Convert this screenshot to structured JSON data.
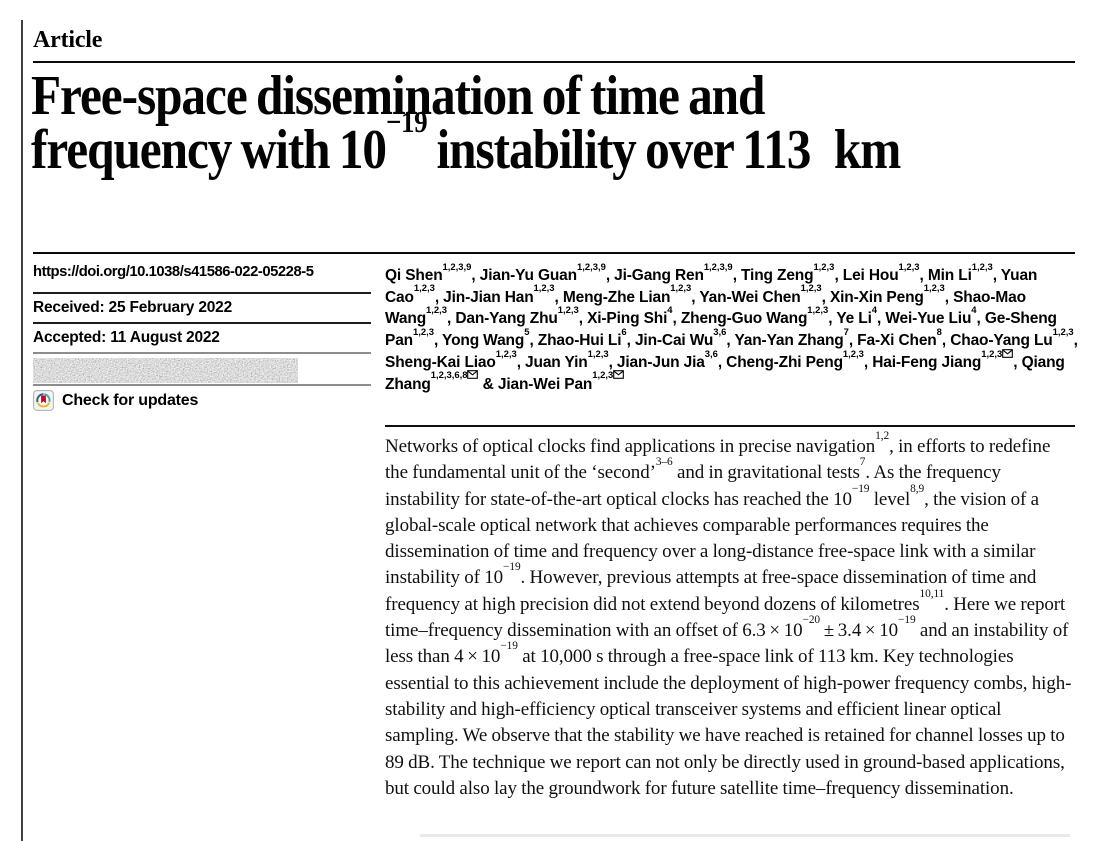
{
  "header": {
    "kicker": "Article"
  },
  "title_segments": [
    {
      "text": "Free-space dissemination of time and\nfrequency with 10"
    },
    {
      "sup": "−19"
    },
    {
      "text": " instability over 113 km"
    }
  ],
  "metadata": {
    "doi": "https://doi.org/10.1038/s41586-022-05228-5",
    "received": "Received: 25 February 2022",
    "accepted": "Accepted: 11 August 2022",
    "published_row_redacted": true,
    "check_updates": "Check for updates"
  },
  "authors": [
    {
      "name": "Qi Shen",
      "sup": "1,2,3,9",
      "sep": ", "
    },
    {
      "name": "Jian-Yu Guan",
      "sup": "1,2,3,9",
      "sep": ", "
    },
    {
      "name": "Ji-Gang Ren",
      "sup": "1,2,3,9",
      "sep": ", "
    },
    {
      "name": "Ting Zeng",
      "sup": "1,2,3",
      "sep": ", "
    },
    {
      "name": "Lei Hou",
      "sup": "1,2,3",
      "sep": ", "
    },
    {
      "name": "Min Li",
      "sup": "1,2,3",
      "sep": ", "
    },
    {
      "name": "Yuan Cao",
      "sup": "1,2,3",
      "sep": ", "
    },
    {
      "name": "Jin-Jian Han",
      "sup": "1,2,3",
      "sep": ", "
    },
    {
      "name": "Meng-Zhe Lian",
      "sup": "1,2,3",
      "sep": ", "
    },
    {
      "name": "Yan-Wei Chen",
      "sup": "1,2,3",
      "sep": ", "
    },
    {
      "name": "Xin-Xin Peng",
      "sup": "1,2,3",
      "sep": ", "
    },
    {
      "name": "Shao-Mao Wang",
      "sup": "1,2,3",
      "sep": ", "
    },
    {
      "name": "Dan-Yang Zhu",
      "sup": "1,2,3",
      "sep": ", "
    },
    {
      "name": "Xi-Ping Shi",
      "sup": "4",
      "sep": ", "
    },
    {
      "name": "Zheng-Guo Wang",
      "sup": "1,2,3",
      "sep": ", "
    },
    {
      "name": "Ye Li",
      "sup": "4",
      "sep": ", "
    },
    {
      "name": "Wei-Yue Liu",
      "sup": "4",
      "sep": ", "
    },
    {
      "name": "Ge-Sheng Pan",
      "sup": "1,2,3",
      "sep": ", "
    },
    {
      "name": "Yong Wang",
      "sup": "5",
      "sep": ", "
    },
    {
      "name": "Zhao-Hui Li",
      "sup": "6",
      "sep": ", "
    },
    {
      "name": "Jin-Cai Wu",
      "sup": "3,6",
      "sep": ", "
    },
    {
      "name": "Yan-Yan Zhang",
      "sup": "7",
      "sep": ", "
    },
    {
      "name": "Fa-Xi Chen",
      "sup": "8",
      "sep": ", "
    },
    {
      "name": "Chao-Yang Lu",
      "sup": "1,2,3",
      "sep": ", "
    },
    {
      "name": "Sheng-Kai Liao",
      "sup": "1,2,3",
      "sep": ", "
    },
    {
      "name": "Juan Yin",
      "sup": "1,2,3",
      "sep": ", "
    },
    {
      "name": "Jian-Jun Jia",
      "sup": "3,6",
      "sep": ", "
    },
    {
      "name": "Cheng-Zhi Peng",
      "sup": "1,2,3",
      "sep": ", "
    },
    {
      "name": "Hai-Feng Jiang",
      "sup": "1,2,3",
      "envelope": true,
      "sep": ", "
    },
    {
      "name": "Qiang Zhang",
      "sup": "1,2,3,6,8",
      "envelope": true,
      "sep": " & "
    },
    {
      "name": "Jian-Wei Pan",
      "sup": "1,2,3",
      "envelope": true,
      "sep": ""
    }
  ],
  "abstract_segments": [
    {
      "text": "Networks of optical clocks find applications in precise navigation"
    },
    {
      "sup": "1,2"
    },
    {
      "text": ", in efforts to redefine the fundamental unit of the ‘second’"
    },
    {
      "sup": "3–6"
    },
    {
      "text": " and in gravitational tests"
    },
    {
      "sup": "7"
    },
    {
      "text": ". As the frequency instability for state-of-the-art optical clocks has reached the 10"
    },
    {
      "sup": "−19"
    },
    {
      "text": " level"
    },
    {
      "sup": "8,9"
    },
    {
      "text": ", the vision of a global-scale optical network that achieves comparable performances requires the dissemination of time and frequency over a long-distance free-space link with a similar instability of 10"
    },
    {
      "sup": "−19"
    },
    {
      "text": ". However, previous attempts at free-space dissemination of time and frequency at high precision did not extend beyond dozens of kilometres"
    },
    {
      "sup": "10,11"
    },
    {
      "text": ". Here we report time–frequency dissemination with an offset of 6.3 × 10"
    },
    {
      "sup": "−20"
    },
    {
      "text": " ± 3.4 × 10"
    },
    {
      "sup": "−19"
    },
    {
      "text": " and an instability of less than 4 × 10"
    },
    {
      "sup": "−19"
    },
    {
      "text": " at 10,000 s through a free-space link of 113 km. Key technologies essential to this achievement include the deployment of high-power frequency combs, high-stability and high-efficiency optical transceiver systems and efficient linear optical sampling. We observe that the stability we have reached is retained for channel losses up to 89 dB. The technique we report can not only be directly used in ground-based applications, but could also lay the groundwork for future satellite time–frequency dissemination."
    }
  ],
  "colors": {
    "text": "#050505",
    "rule": "#0a0a0a",
    "crossmark_red": "#d0021b",
    "crossmark_blue": "#2d5f8a",
    "crossmark_teal": "#4aa8ad",
    "crossmark_yellow": "#f0b52e"
  }
}
